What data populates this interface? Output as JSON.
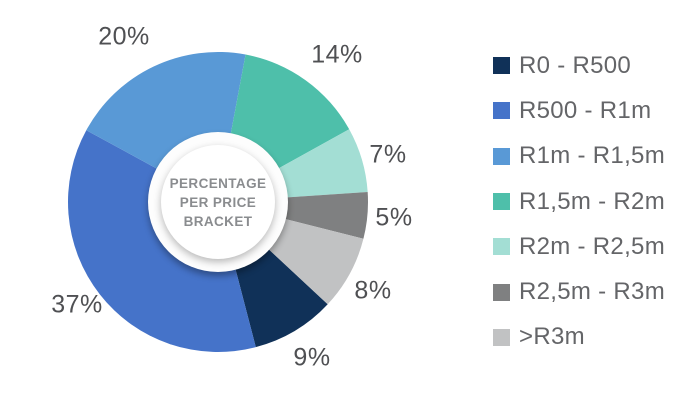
{
  "chart_data": {
    "type": "pie",
    "subtype": "donut",
    "title": "PERCENTAGE\nPER PRICE\nBRACKET",
    "legend_position": "right",
    "start_angle_deg": 133,
    "direction": "clockwise",
    "value_suffix": "%",
    "segments": [
      {
        "label": "R0 - R500",
        "value": 9,
        "color": "#103158"
      },
      {
        "label": "R500 - R1m",
        "value": 37,
        "color": "#4573C9"
      },
      {
        "label": "R1m - R1,5m",
        "value": 20,
        "color": "#5999D6"
      },
      {
        "label": "R1,5m - R2m",
        "value": 14,
        "color": "#4EBFAA"
      },
      {
        "label": "R2m - R2,5m",
        "value": 7,
        "color": "#A3DED4"
      },
      {
        "label": "R2,5m - R3m",
        "value": 5,
        "color": "#7F8081"
      },
      {
        "label": ">R3m",
        "value": 8,
        "color": "#C1C2C3"
      }
    ],
    "colors": {
      "background": "#FFFFFF",
      "percent_label": "#4F5053",
      "legend_label": "#646568",
      "center_title": "#8A8C8F"
    }
  }
}
